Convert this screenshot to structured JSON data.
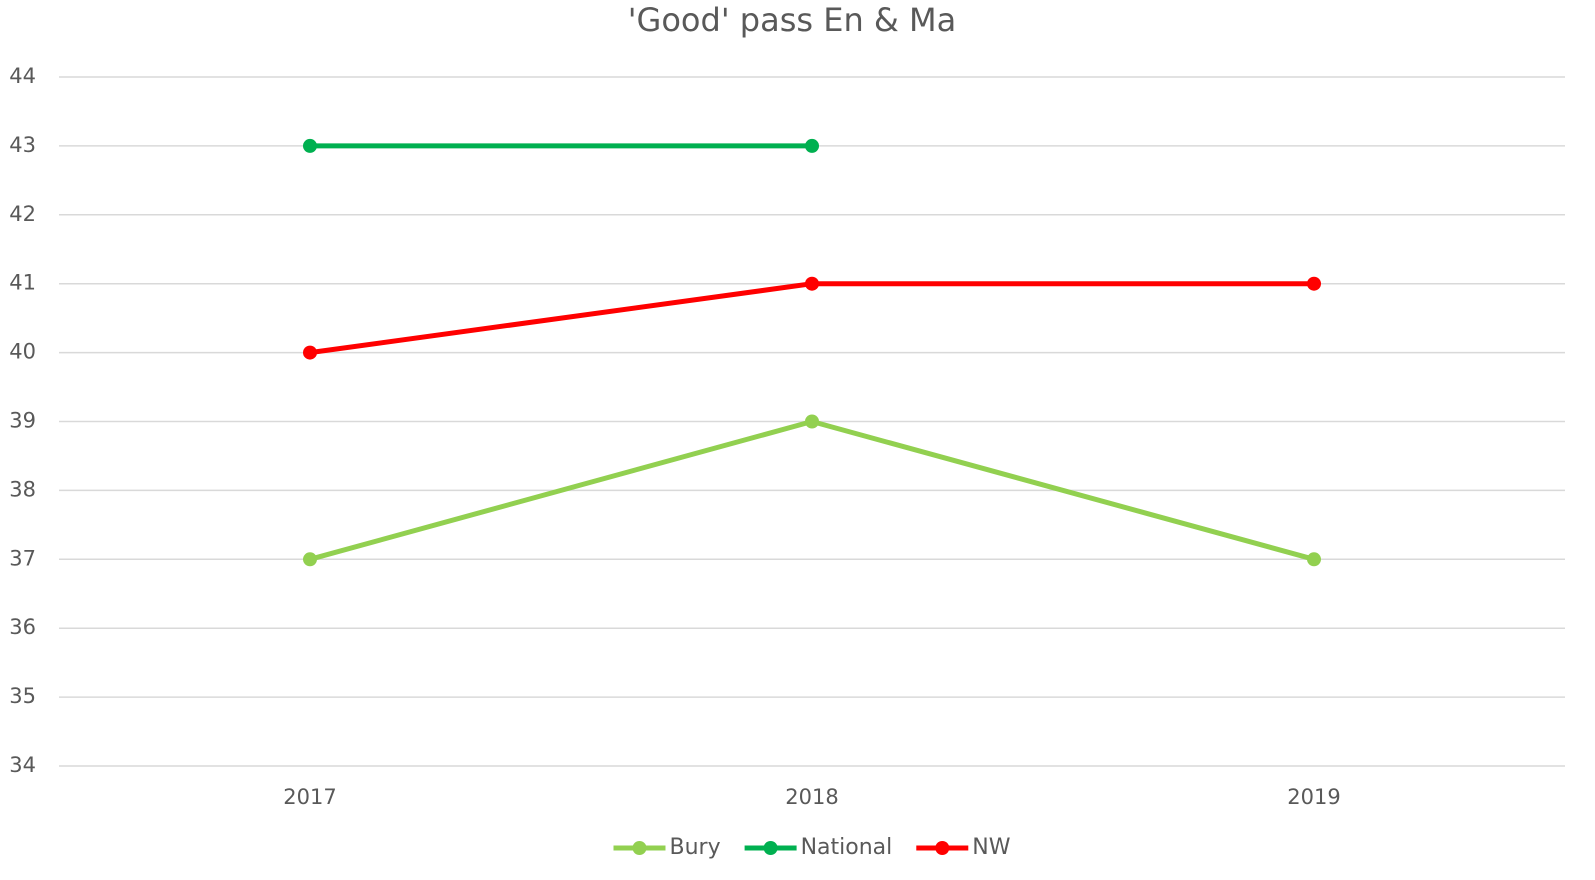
{
  "chart_data": {
    "type": "line",
    "title": "'Good' pass En & Ma",
    "categories": [
      "2017",
      "2018",
      "2019"
    ],
    "series": [
      {
        "name": "Bury",
        "color": "#92d050",
        "values": [
          37,
          39,
          37
        ]
      },
      {
        "name": "National",
        "color": "#00b050",
        "values": [
          43,
          43,
          null
        ]
      },
      {
        "name": "NW",
        "color": "#ff0000",
        "values": [
          40,
          41,
          41
        ]
      }
    ],
    "ylim": [
      34,
      44
    ],
    "yticks": [
      34,
      35,
      36,
      37,
      38,
      39,
      40,
      41,
      42,
      43,
      44
    ],
    "grid": true,
    "legend": "bottom"
  }
}
